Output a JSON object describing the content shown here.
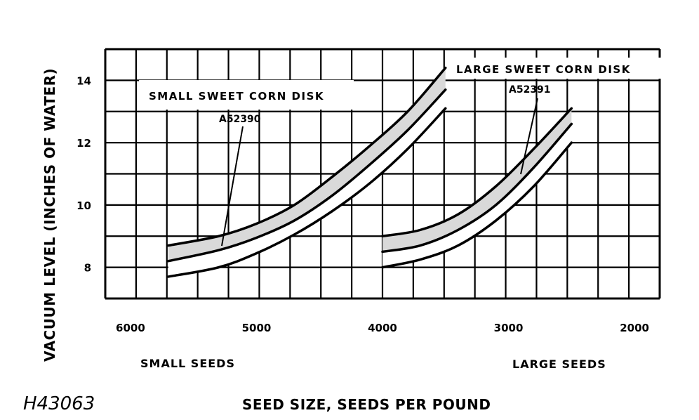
{
  "chart_data": {
    "type": "line",
    "ylabel": "VACUUM LEVEL (INCHES OF WATER)",
    "xlabel": "SEED SIZE, SEEDS PER POUND",
    "figure_id": "H43063",
    "x_ticks": [
      "6000",
      "5000",
      "4000",
      "3000",
      "2000"
    ],
    "y_ticks": [
      "8",
      "10",
      "12",
      "14"
    ],
    "xlim": [
      6200,
      1800
    ],
    "ylim": [
      7,
      15
    ],
    "x_reversed": true,
    "grid": true,
    "small_seeds_label": "SMALL SEEDS",
    "large_seeds_label": "LARGE SEEDS",
    "series": [
      {
        "name": "SMALL SWEET CORN DISK",
        "part_number": "A52390",
        "upper": {
          "x": [
            5700,
            5300,
            5000,
            4700,
            4400,
            4100,
            3800,
            3500
          ],
          "y": [
            8.7,
            9.0,
            9.4,
            10.0,
            10.9,
            11.9,
            13.0,
            14.4
          ]
        },
        "middle": {
          "x": [
            5700,
            5300,
            5000,
            4700,
            4400,
            4100,
            3800,
            3500
          ],
          "y": [
            8.2,
            8.55,
            8.95,
            9.5,
            10.3,
            11.3,
            12.4,
            13.7
          ]
        },
        "lower": {
          "x": [
            5700,
            5300,
            5000,
            4700,
            4400,
            4100,
            3800,
            3500
          ],
          "y": [
            7.7,
            8.0,
            8.45,
            9.05,
            9.8,
            10.7,
            11.8,
            13.1
          ]
        }
      },
      {
        "name": "LARGE SWEET CORN DISK",
        "part_number": "A52391",
        "upper": {
          "x": [
            4000,
            3700,
            3400,
            3100,
            2800,
            2500
          ],
          "y": [
            9.0,
            9.2,
            9.7,
            10.6,
            11.8,
            13.1
          ]
        },
        "middle": {
          "x": [
            4000,
            3700,
            3400,
            3100,
            2800,
            2500
          ],
          "y": [
            8.5,
            8.7,
            9.2,
            10.0,
            11.2,
            12.6
          ]
        },
        "lower": {
          "x": [
            4000,
            3700,
            3400,
            3100,
            2800,
            2500
          ],
          "y": [
            8.0,
            8.25,
            8.7,
            9.5,
            10.6,
            12.0
          ]
        }
      }
    ]
  },
  "colors": {
    "ink": "#000000",
    "band_fill": "#d9d9d9",
    "background": "#ffffff"
  }
}
